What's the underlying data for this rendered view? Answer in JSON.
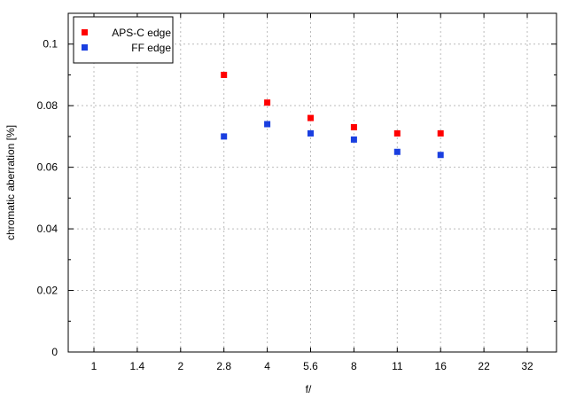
{
  "chart_data": {
    "type": "scatter",
    "title": "",
    "xlabel": "f/",
    "ylabel": "chromatic  aberration [%]",
    "categories": [
      "1",
      "1.4",
      "2",
      "2.8",
      "4",
      "5.6",
      "8",
      "11",
      "16",
      "22",
      "32"
    ],
    "ylim": [
      0,
      0.11
    ],
    "yticks": [
      "0",
      "0.02",
      "0.04",
      "0.06",
      "0.08",
      "0.1"
    ],
    "grid": true,
    "legend_position": "top-left",
    "series": [
      {
        "name": "APS-C edge",
        "color": "#ff0000",
        "x": [
          "2.8",
          "4",
          "5.6",
          "8",
          "11",
          "16"
        ],
        "values": [
          0.09,
          0.081,
          0.076,
          0.073,
          0.071,
          0.071
        ]
      },
      {
        "name": "FF edge",
        "color": "#1a3fe0",
        "x": [
          "2.8",
          "4",
          "5.6",
          "8",
          "11",
          "16"
        ],
        "values": [
          0.07,
          0.074,
          0.071,
          0.069,
          0.065,
          0.064
        ]
      }
    ]
  }
}
